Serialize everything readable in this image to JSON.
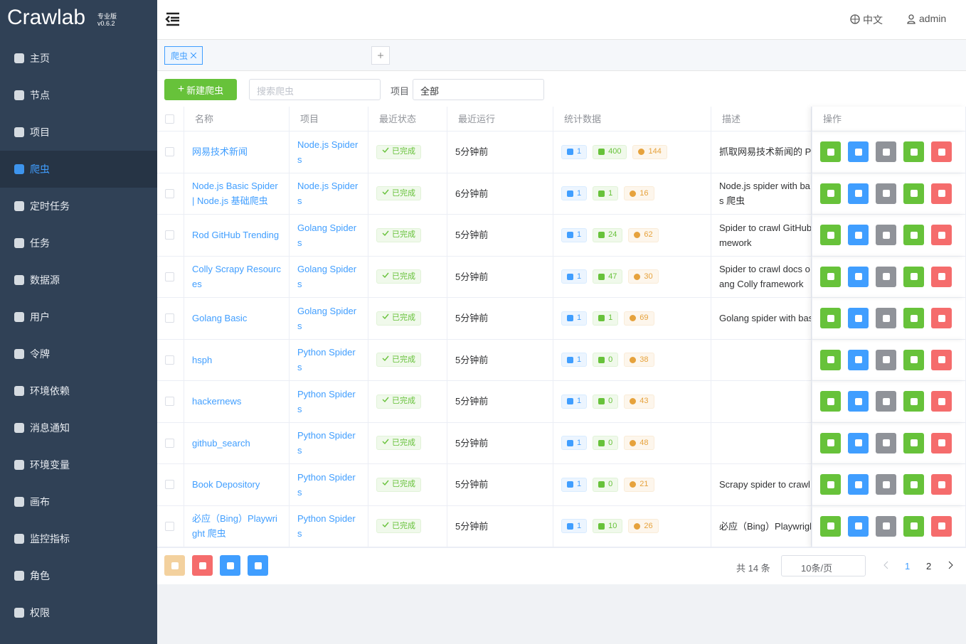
{
  "logo": {
    "name": "Crawlab",
    "edition": "专业版",
    "version": "v0.6.2"
  },
  "sidebar": {
    "items": [
      "主页",
      "节点",
      "项目",
      "爬虫",
      "定时任务",
      "任务",
      "数据源",
      "用户",
      "令牌",
      "环境依赖",
      "消息通知",
      "环境变量",
      "画布",
      "监控指标",
      "角色",
      "权限"
    ],
    "active": 3
  },
  "header": {
    "language": "中文",
    "user": "admin"
  },
  "tabs": [
    "爬虫"
  ],
  "toolbar": {
    "new_button": "新建爬虫",
    "search_placeholder": "搜索爬虫",
    "project_label": "项目",
    "project_value": "全部"
  },
  "table": {
    "columns": [
      "名称",
      "项目",
      "最近状态",
      "最近运行",
      "统计数据",
      "描述",
      "操作"
    ],
    "rows": [
      {
        "name": "网易技术新闻",
        "project": "Node.js Spiders",
        "status": "已完成",
        "last_run": "5分钟前",
        "stats": [
          1,
          400,
          144
        ],
        "description": "抓取网易技术新闻的 P"
      },
      {
        "name": "Node.js Basic Spider | Node.js 基础爬虫",
        "project": "Node.js Spiders",
        "status": "已完成",
        "last_run": "6分钟前",
        "stats": [
          1,
          1,
          16
        ],
        "description": "Node.js spider with ba\ns 爬虫"
      },
      {
        "name": "Rod GitHub Trending",
        "project": "Golang Spiders",
        "status": "已完成",
        "last_run": "5分钟前",
        "stats": [
          1,
          24,
          62
        ],
        "description": "Spider to crawl GitHub\nmework"
      },
      {
        "name": "Colly Scrapy Resources",
        "project": "Golang Spiders",
        "status": "已完成",
        "last_run": "5分钟前",
        "stats": [
          1,
          47,
          30
        ],
        "description": "Spider to crawl docs o\nang Colly framework"
      },
      {
        "name": "Golang Basic",
        "project": "Golang Spiders",
        "status": "已完成",
        "last_run": "5分钟前",
        "stats": [
          1,
          1,
          69
        ],
        "description": "Golang spider with bas"
      },
      {
        "name": "hsph",
        "project": "Python Spiders",
        "status": "已完成",
        "last_run": "5分钟前",
        "stats": [
          1,
          0,
          38
        ]
      },
      {
        "name": "hackernews",
        "project": "Python Spiders",
        "status": "已完成",
        "last_run": "5分钟前",
        "stats": [
          1,
          0,
          43
        ]
      },
      {
        "name": "github_search",
        "project": "Python Spiders",
        "status": "已完成",
        "last_run": "5分钟前",
        "stats": [
          1,
          0,
          48
        ]
      },
      {
        "name": "Book Depository",
        "project": "Python Spiders",
        "status": "已完成",
        "last_run": "5分钟前",
        "stats": [
          1,
          0,
          21
        ],
        "description": "Scrapy spider to crawl"
      },
      {
        "name": "必应（Bing）Playwright 爬虫",
        "project": "Python Spiders",
        "status": "已完成",
        "last_run": "5分钟前",
        "stats": [
          1,
          10,
          26
        ],
        "description": "必应（Bing）Playwrigh"
      }
    ]
  },
  "pagination": {
    "total": "共 14 条",
    "page_size": "10条/页",
    "pages": [
      1,
      2
    ],
    "current": 0
  }
}
